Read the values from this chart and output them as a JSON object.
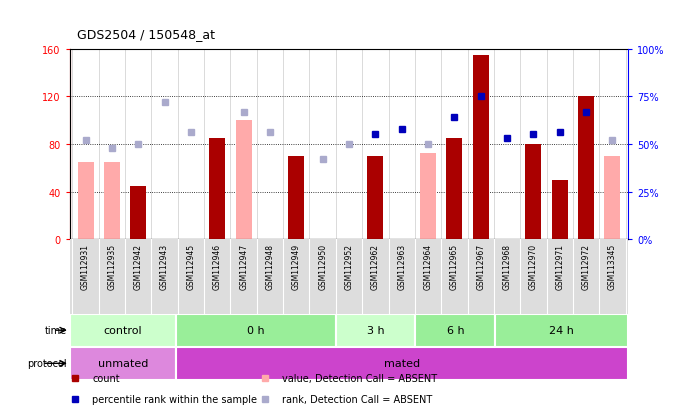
{
  "title": "GDS2504 / 150548_at",
  "samples": [
    "GSM112931",
    "GSM112935",
    "GSM112942",
    "GSM112943",
    "GSM112945",
    "GSM112946",
    "GSM112947",
    "GSM112948",
    "GSM112949",
    "GSM112950",
    "GSM112952",
    "GSM112962",
    "GSM112963",
    "GSM112964",
    "GSM112965",
    "GSM112967",
    "GSM112968",
    "GSM112970",
    "GSM112971",
    "GSM112972",
    "GSM113345"
  ],
  "count_present": [
    null,
    null,
    45,
    null,
    null,
    85,
    null,
    null,
    70,
    null,
    null,
    70,
    null,
    null,
    85,
    155,
    null,
    80,
    50,
    120,
    null
  ],
  "count_absent": [
    65,
    65,
    null,
    null,
    null,
    null,
    100,
    null,
    null,
    null,
    null,
    null,
    null,
    72,
    null,
    null,
    null,
    null,
    null,
    null,
    70
  ],
  "pct_present": [
    null,
    null,
    null,
    null,
    null,
    null,
    null,
    null,
    null,
    null,
    null,
    55,
    58,
    null,
    64,
    75,
    53,
    55,
    56,
    67,
    null
  ],
  "pct_absent": [
    52,
    48,
    50,
    72,
    56,
    null,
    67,
    56,
    null,
    42,
    50,
    null,
    null,
    50,
    null,
    null,
    null,
    null,
    null,
    null,
    52
  ],
  "ylim_left": [
    0,
    160
  ],
  "ylim_right": [
    0,
    100
  ],
  "yticks_left": [
    0,
    40,
    80,
    120,
    160
  ],
  "yticks_right": [
    0,
    25,
    50,
    75,
    100
  ],
  "ytick_labels_left": [
    "0",
    "40",
    "80",
    "120",
    "160"
  ],
  "ytick_labels_right": [
    "0%",
    "25%",
    "50%",
    "75%",
    "100%"
  ],
  "bar_color_present": "#aa0000",
  "bar_color_absent": "#ffaaaa",
  "dot_color_present": "#0000bb",
  "dot_color_absent": "#aaaacc",
  "time_groups": [
    {
      "label": "control",
      "start": 0,
      "end": 4
    },
    {
      "label": "0 h",
      "start": 4,
      "end": 10
    },
    {
      "label": "3 h",
      "start": 10,
      "end": 13
    },
    {
      "label": "6 h",
      "start": 13,
      "end": 16
    },
    {
      "label": "24 h",
      "start": 16,
      "end": 21
    }
  ],
  "protocol_groups": [
    {
      "label": "unmated",
      "start": 0,
      "end": 4,
      "color": "#dd88dd"
    },
    {
      "label": "mated",
      "start": 4,
      "end": 21,
      "color": "#cc44cc"
    }
  ],
  "time_bg_light": "#ccffcc",
  "time_bg_dark": "#99ee99",
  "legend_items": [
    {
      "label": "count",
      "color": "#aa0000"
    },
    {
      "label": "percentile rank within the sample",
      "color": "#0000bb"
    },
    {
      "label": "value, Detection Call = ABSENT",
      "color": "#ffaaaa"
    },
    {
      "label": "rank, Detection Call = ABSENT",
      "color": "#aaaacc"
    }
  ]
}
